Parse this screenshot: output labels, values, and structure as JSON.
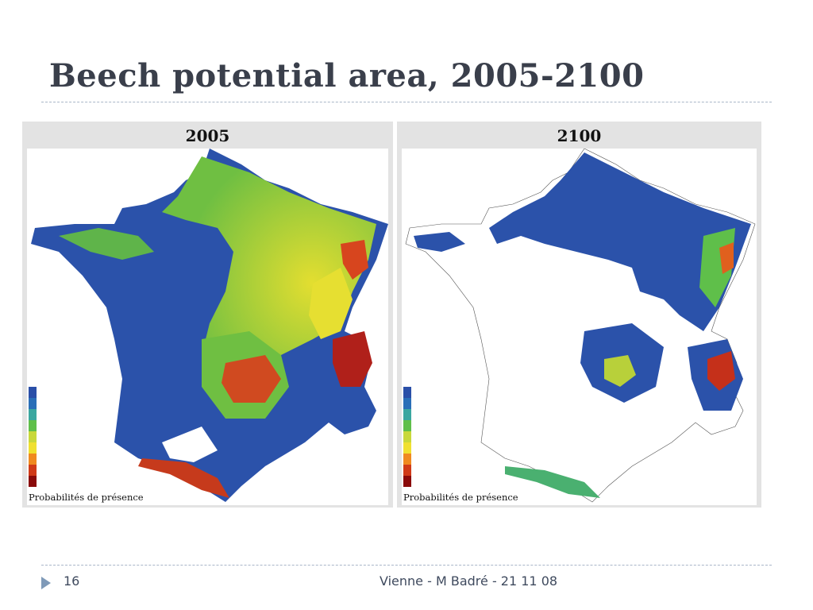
{
  "slide": {
    "title": "Beech potential area, 2005-2100",
    "page_number": "16",
    "footer": "Vienne - M Badré - 21 11 08"
  },
  "maps": [
    {
      "year": "2005",
      "legend_caption": "Probabilités de présence"
    },
    {
      "year": "2100",
      "legend_caption": "Probabilités de présence"
    }
  ],
  "legend_colors": [
    "#2a4fa8",
    "#2a6fb8",
    "#3aa7a0",
    "#5fbf4a",
    "#c8d83a",
    "#f0e030",
    "#f08a20",
    "#d03a18",
    "#8a0a0a"
  ],
  "palette": {
    "low": "#2a50a9",
    "mid_low": "#49a97b",
    "mid": "#8fcc3f",
    "mid_high": "#e6df31",
    "high": "#e5641f",
    "max": "#8b1010",
    "absent": "#ffffff"
  }
}
